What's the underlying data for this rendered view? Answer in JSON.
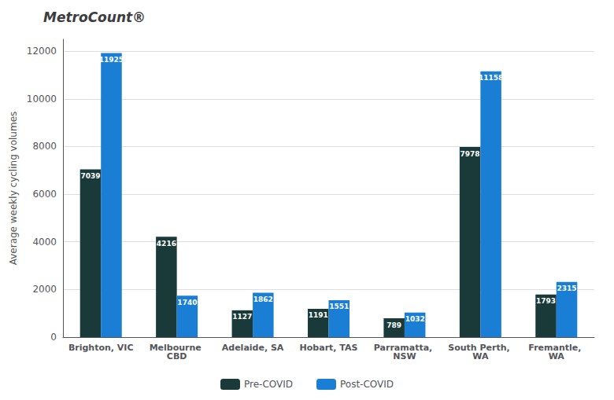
{
  "chart_data": {
    "type": "bar",
    "title": "MetroCount®",
    "ylabel": "Average weekly cycling volumes",
    "categories": [
      "Brighton, VIC",
      "Melbourne CBD",
      "Adelaide, SA",
      "Hobart, TAS",
      "Parramatta, NSW",
      "South Perth, WA",
      "Fremantle, WA"
    ],
    "series": [
      {
        "name": "Pre-COVID",
        "color": "#1a3a3a",
        "values": [
          7039,
          4216,
          1127,
          1191,
          789,
          7978,
          1793
        ]
      },
      {
        "name": "Post-COVID",
        "color": "#1a7fd4",
        "values": [
          11925,
          1740,
          1862,
          1551,
          1032,
          11158,
          2315
        ]
      }
    ],
    "ylim": [
      0,
      12500
    ],
    "yticks": [
      0,
      2000,
      4000,
      6000,
      8000,
      10000,
      12000
    ],
    "grid": true,
    "legend": "bottom",
    "data_labels": true
  }
}
